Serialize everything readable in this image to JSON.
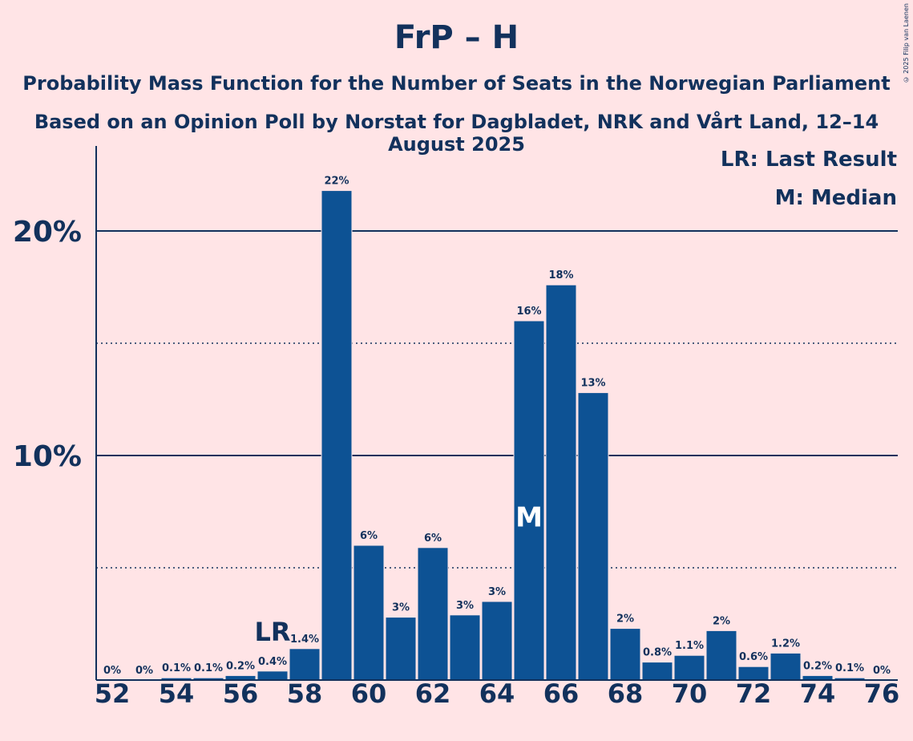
{
  "title": "FrP – H",
  "subtitle": "Probability Mass Function for the Number of Seats in the Norwegian Parliament",
  "subtitle2": "Based on an Opinion Poll by Norstat for Dagbladet, NRK and Vårt Land, 12–14 August 2025",
  "copyright": "© 2025 Filip van Laenen",
  "legend": {
    "lr": "LR: Last Result",
    "median": "M: Median"
  },
  "colors": {
    "background": "#ffe4e6",
    "bar": "#0d5294",
    "ink": "#12315c"
  },
  "chart_data": {
    "type": "bar",
    "x": [
      52,
      53,
      54,
      55,
      56,
      57,
      58,
      59,
      60,
      61,
      62,
      63,
      64,
      65,
      66,
      67,
      68,
      69,
      70,
      71,
      72,
      73,
      74,
      75,
      76
    ],
    "values": [
      0,
      0,
      0.1,
      0.1,
      0.2,
      0.4,
      1.4,
      21.8,
      6,
      2.8,
      5.9,
      2.9,
      3.5,
      16,
      17.6,
      12.8,
      2.3,
      0.8,
      1.1,
      2.2,
      0.6,
      1.2,
      0.2,
      0.1,
      0
    ],
    "labels": [
      "0%",
      "0%",
      "0.1%",
      "0.1%",
      "0.2%",
      "0.4%",
      "1.4%",
      "22%",
      "6%",
      "3%",
      "6%",
      "3%",
      "3%",
      "16%",
      "18%",
      "13%",
      "2%",
      "0.8%",
      "1.1%",
      "2%",
      "0.6%",
      "1.2%",
      "0.2%",
      "0.1%",
      "0%"
    ],
    "xticks": [
      52,
      54,
      56,
      58,
      60,
      62,
      64,
      66,
      68,
      70,
      72,
      74,
      76
    ],
    "yticks": [
      {
        "value": 10,
        "label": "10%"
      },
      {
        "value": 20,
        "label": "20%"
      }
    ],
    "minor_grid": [
      5,
      15
    ],
    "ylim": [
      0,
      23.8
    ],
    "last_result": 57,
    "last_result_label": "LR",
    "median": 65,
    "median_label": "M",
    "ylabel": "",
    "xlabel": ""
  }
}
